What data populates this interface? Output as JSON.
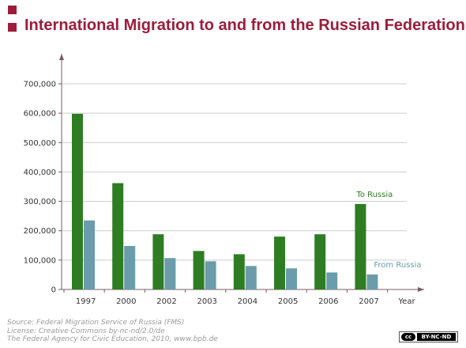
{
  "title": "International Migration to and from the Russian Federation",
  "chart_data": {
    "type": "bar",
    "categories": [
      "1997",
      "2000",
      "2002",
      "2003",
      "2004",
      "2005",
      "2006",
      "2007"
    ],
    "series": [
      {
        "name": "To Russia",
        "color": "#2e7d23",
        "values": [
          598000,
          362000,
          188000,
          131000,
          120000,
          180000,
          188000,
          291000
        ]
      },
      {
        "name": "From Russia",
        "color": "#6b9cab",
        "values": [
          235000,
          148000,
          107000,
          96000,
          80000,
          72000,
          58000,
          51000
        ]
      }
    ],
    "xlabel": "Year",
    "ylabel": "",
    "ylim": [
      0,
      700000
    ],
    "yticks": [
      "0",
      "100,000",
      "200,000",
      "300,000",
      "400,000",
      "500,000",
      "600,000",
      "700,000"
    ],
    "grid": true
  },
  "source": {
    "line1": "Source: Federal Migration Service of Russia (FMS)",
    "line2": "License: Creative Commons by-nc-nd/2.0/de",
    "line3": "The Federal Agency for Civic Education, 2010, www.bpb.de"
  },
  "license_badge": {
    "cc": "cc",
    "text": "BY-NC-ND"
  },
  "colors": {
    "accent": "#9b1c3b",
    "grid": "#cccccc",
    "axis": "#7a5a66"
  }
}
